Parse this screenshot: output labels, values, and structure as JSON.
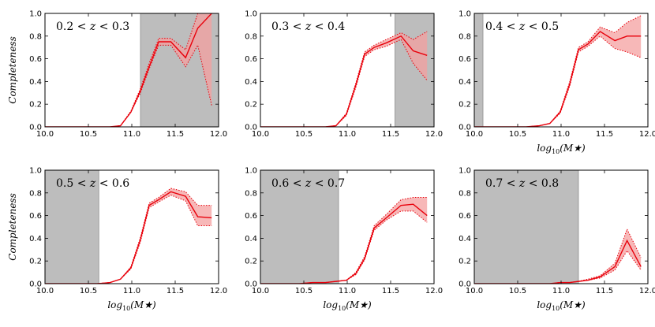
{
  "figure": {
    "colors": {
      "line": "#e8000b",
      "band": "#f4a0a0",
      "shade": "#bdbdbd",
      "shade_edge": "#8c8c8c",
      "axis": "#000000"
    }
  },
  "chart_data": [
    {
      "type": "line",
      "label": "0.2 < z < 0.3",
      "xlim": [
        10.0,
        12.0
      ],
      "ylim": [
        0.0,
        1.0
      ],
      "xticks": [
        "10.0",
        "10.5",
        "11.0",
        "11.5",
        "12.0"
      ],
      "yticks": [
        "0.0",
        "0.2",
        "0.4",
        "0.6",
        "0.8",
        "1.0"
      ],
      "xlabel": "",
      "ylabel": "Completeness",
      "shaded_region": [
        11.1,
        12.0
      ],
      "x": [
        10.0,
        10.15,
        10.3,
        10.45,
        10.6,
        10.75,
        10.87,
        10.99,
        11.1,
        11.2,
        11.31,
        11.45,
        11.62,
        11.76,
        11.92
      ],
      "y": [
        0.0,
        0.0,
        0.0,
        0.0,
        0.0,
        0.0,
        0.01,
        0.13,
        0.32,
        0.53,
        0.75,
        0.75,
        0.61,
        0.87,
        1.0
      ],
      "y_low": [
        0.0,
        0.0,
        0.0,
        0.0,
        0.0,
        0.0,
        0.01,
        0.13,
        0.3,
        0.51,
        0.72,
        0.72,
        0.53,
        0.72,
        0.19
      ],
      "y_high": [
        0.0,
        0.0,
        0.0,
        0.0,
        0.0,
        0.0,
        0.01,
        0.14,
        0.34,
        0.56,
        0.78,
        0.78,
        0.68,
        1.0,
        1.0
      ]
    },
    {
      "type": "line",
      "label": "0.3 < z < 0.4",
      "xlim": [
        10.0,
        12.0
      ],
      "ylim": [
        0.0,
        1.0
      ],
      "xticks": [
        "10.0",
        "10.5",
        "11.0",
        "11.5",
        "12.0"
      ],
      "yticks": [
        "0.0",
        "0.2",
        "0.4",
        "0.6",
        "0.8",
        "1.0"
      ],
      "xlabel": "",
      "ylabel": "",
      "shaded_region": [
        11.55,
        12.0
      ],
      "x": [
        10.0,
        10.15,
        10.3,
        10.45,
        10.6,
        10.75,
        10.87,
        10.99,
        11.1,
        11.2,
        11.31,
        11.45,
        11.62,
        11.76,
        11.92
      ],
      "y": [
        0.0,
        0.0,
        0.0,
        0.0,
        0.0,
        0.0,
        0.01,
        0.11,
        0.37,
        0.64,
        0.7,
        0.74,
        0.8,
        0.67,
        0.63
      ],
      "y_low": [
        0.0,
        0.0,
        0.0,
        0.0,
        0.0,
        0.0,
        0.01,
        0.1,
        0.35,
        0.62,
        0.68,
        0.71,
        0.77,
        0.56,
        0.41
      ],
      "y_high": [
        0.0,
        0.0,
        0.0,
        0.0,
        0.0,
        0.0,
        0.01,
        0.12,
        0.39,
        0.66,
        0.72,
        0.77,
        0.83,
        0.77,
        0.84
      ]
    },
    {
      "type": "line",
      "label": "0.4 < z < 0.5",
      "xlim": [
        10.0,
        12.0
      ],
      "ylim": [
        0.0,
        1.0
      ],
      "xticks": [
        "10.0",
        "10.5",
        "11.0",
        "11.5",
        "12.0"
      ],
      "yticks": [
        "0.0",
        "0.2",
        "0.4",
        "0.6",
        "0.8",
        "1.0"
      ],
      "xlabel": "log10(M★)",
      "ylabel": "",
      "shaded_region": [
        10.0,
        10.1
      ],
      "x": [
        10.0,
        10.15,
        10.3,
        10.45,
        10.6,
        10.75,
        10.87,
        10.99,
        11.1,
        11.2,
        11.31,
        11.45,
        11.62,
        11.76,
        11.92
      ],
      "y": [
        0.0,
        0.0,
        0.0,
        0.0,
        0.0,
        0.01,
        0.03,
        0.13,
        0.38,
        0.68,
        0.73,
        0.84,
        0.76,
        0.8,
        0.8
      ],
      "y_low": [
        0.0,
        0.0,
        0.0,
        0.0,
        0.0,
        0.01,
        0.03,
        0.12,
        0.36,
        0.66,
        0.71,
        0.8,
        0.69,
        0.66,
        0.61
      ],
      "y_high": [
        0.0,
        0.0,
        0.0,
        0.0,
        0.0,
        0.01,
        0.03,
        0.14,
        0.4,
        0.7,
        0.75,
        0.88,
        0.83,
        0.92,
        0.98
      ]
    },
    {
      "type": "line",
      "label": "0.5 < z < 0.6",
      "xlim": [
        10.0,
        12.0
      ],
      "ylim": [
        0.0,
        1.0
      ],
      "xticks": [
        "10.0",
        "10.5",
        "11.0",
        "11.5",
        "12.0"
      ],
      "yticks": [
        "0.0",
        "0.2",
        "0.4",
        "0.6",
        "0.8",
        "1.0"
      ],
      "xlabel": "log10(M★)",
      "ylabel": "Completeness",
      "shaded_region": [
        10.0,
        10.62
      ],
      "x": [
        10.0,
        10.15,
        10.3,
        10.45,
        10.6,
        10.75,
        10.87,
        10.99,
        11.1,
        11.2,
        11.31,
        11.45,
        11.62,
        11.76,
        11.92
      ],
      "y": [
        0.0,
        0.0,
        0.0,
        0.0,
        0.0,
        0.01,
        0.04,
        0.14,
        0.39,
        0.69,
        0.74,
        0.81,
        0.77,
        0.59,
        0.58
      ],
      "y_low": [
        0.0,
        0.0,
        0.0,
        0.0,
        0.0,
        0.01,
        0.04,
        0.13,
        0.37,
        0.67,
        0.72,
        0.78,
        0.73,
        0.51,
        0.51
      ],
      "y_high": [
        0.0,
        0.0,
        0.0,
        0.0,
        0.0,
        0.01,
        0.04,
        0.15,
        0.41,
        0.71,
        0.76,
        0.84,
        0.81,
        0.69,
        0.69
      ]
    },
    {
      "type": "line",
      "label": "0.6 < z < 0.7",
      "xlim": [
        10.0,
        12.0
      ],
      "ylim": [
        0.0,
        1.0
      ],
      "xticks": [
        "10.0",
        "10.5",
        "11.0",
        "11.5",
        "12.0"
      ],
      "yticks": [
        "0.0",
        "0.2",
        "0.4",
        "0.6",
        "0.8",
        "1.0"
      ],
      "xlabel": "log10(M★)",
      "ylabel": "",
      "shaded_region": [
        10.0,
        10.9
      ],
      "x": [
        10.0,
        10.15,
        10.3,
        10.45,
        10.6,
        10.75,
        10.87,
        10.99,
        11.1,
        11.2,
        11.31,
        11.45,
        11.62,
        11.76,
        11.92
      ],
      "y": [
        0.0,
        0.0,
        0.0,
        0.0,
        0.01,
        0.01,
        0.02,
        0.03,
        0.09,
        0.22,
        0.49,
        0.58,
        0.69,
        0.7,
        0.6
      ],
      "y_low": [
        0.0,
        0.0,
        0.0,
        0.0,
        0.01,
        0.01,
        0.02,
        0.03,
        0.08,
        0.21,
        0.47,
        0.56,
        0.64,
        0.64,
        0.54
      ],
      "y_high": [
        0.0,
        0.0,
        0.0,
        0.0,
        0.01,
        0.01,
        0.02,
        0.03,
        0.1,
        0.24,
        0.51,
        0.61,
        0.74,
        0.76,
        0.76
      ]
    },
    {
      "type": "line",
      "label": "0.7 < z < 0.8",
      "xlim": [
        10.0,
        12.0
      ],
      "ylim": [
        0.0,
        1.0
      ],
      "xticks": [
        "10.0",
        "10.5",
        "11.0",
        "11.5",
        "12.0"
      ],
      "yticks": [
        "0.0",
        "0.2",
        "0.4",
        "0.6",
        "0.8",
        "1.0"
      ],
      "xlabel": "log10(M★)",
      "ylabel": "",
      "shaded_region": [
        10.0,
        11.2
      ],
      "x": [
        10.0,
        10.15,
        10.3,
        10.45,
        10.6,
        10.75,
        10.87,
        10.99,
        11.1,
        11.2,
        11.31,
        11.45,
        11.62,
        11.76,
        11.92
      ],
      "y": [
        0.0,
        0.0,
        0.0,
        0.0,
        0.0,
        0.0,
        0.0,
        0.01,
        0.01,
        0.02,
        0.03,
        0.06,
        0.15,
        0.38,
        0.15
      ],
      "y_low": [
        0.0,
        0.0,
        0.0,
        0.0,
        0.0,
        0.0,
        0.0,
        0.01,
        0.01,
        0.02,
        0.03,
        0.05,
        0.12,
        0.29,
        0.12
      ],
      "y_high": [
        0.0,
        0.0,
        0.0,
        0.0,
        0.0,
        0.0,
        0.0,
        0.01,
        0.01,
        0.02,
        0.04,
        0.07,
        0.18,
        0.48,
        0.23
      ]
    }
  ]
}
